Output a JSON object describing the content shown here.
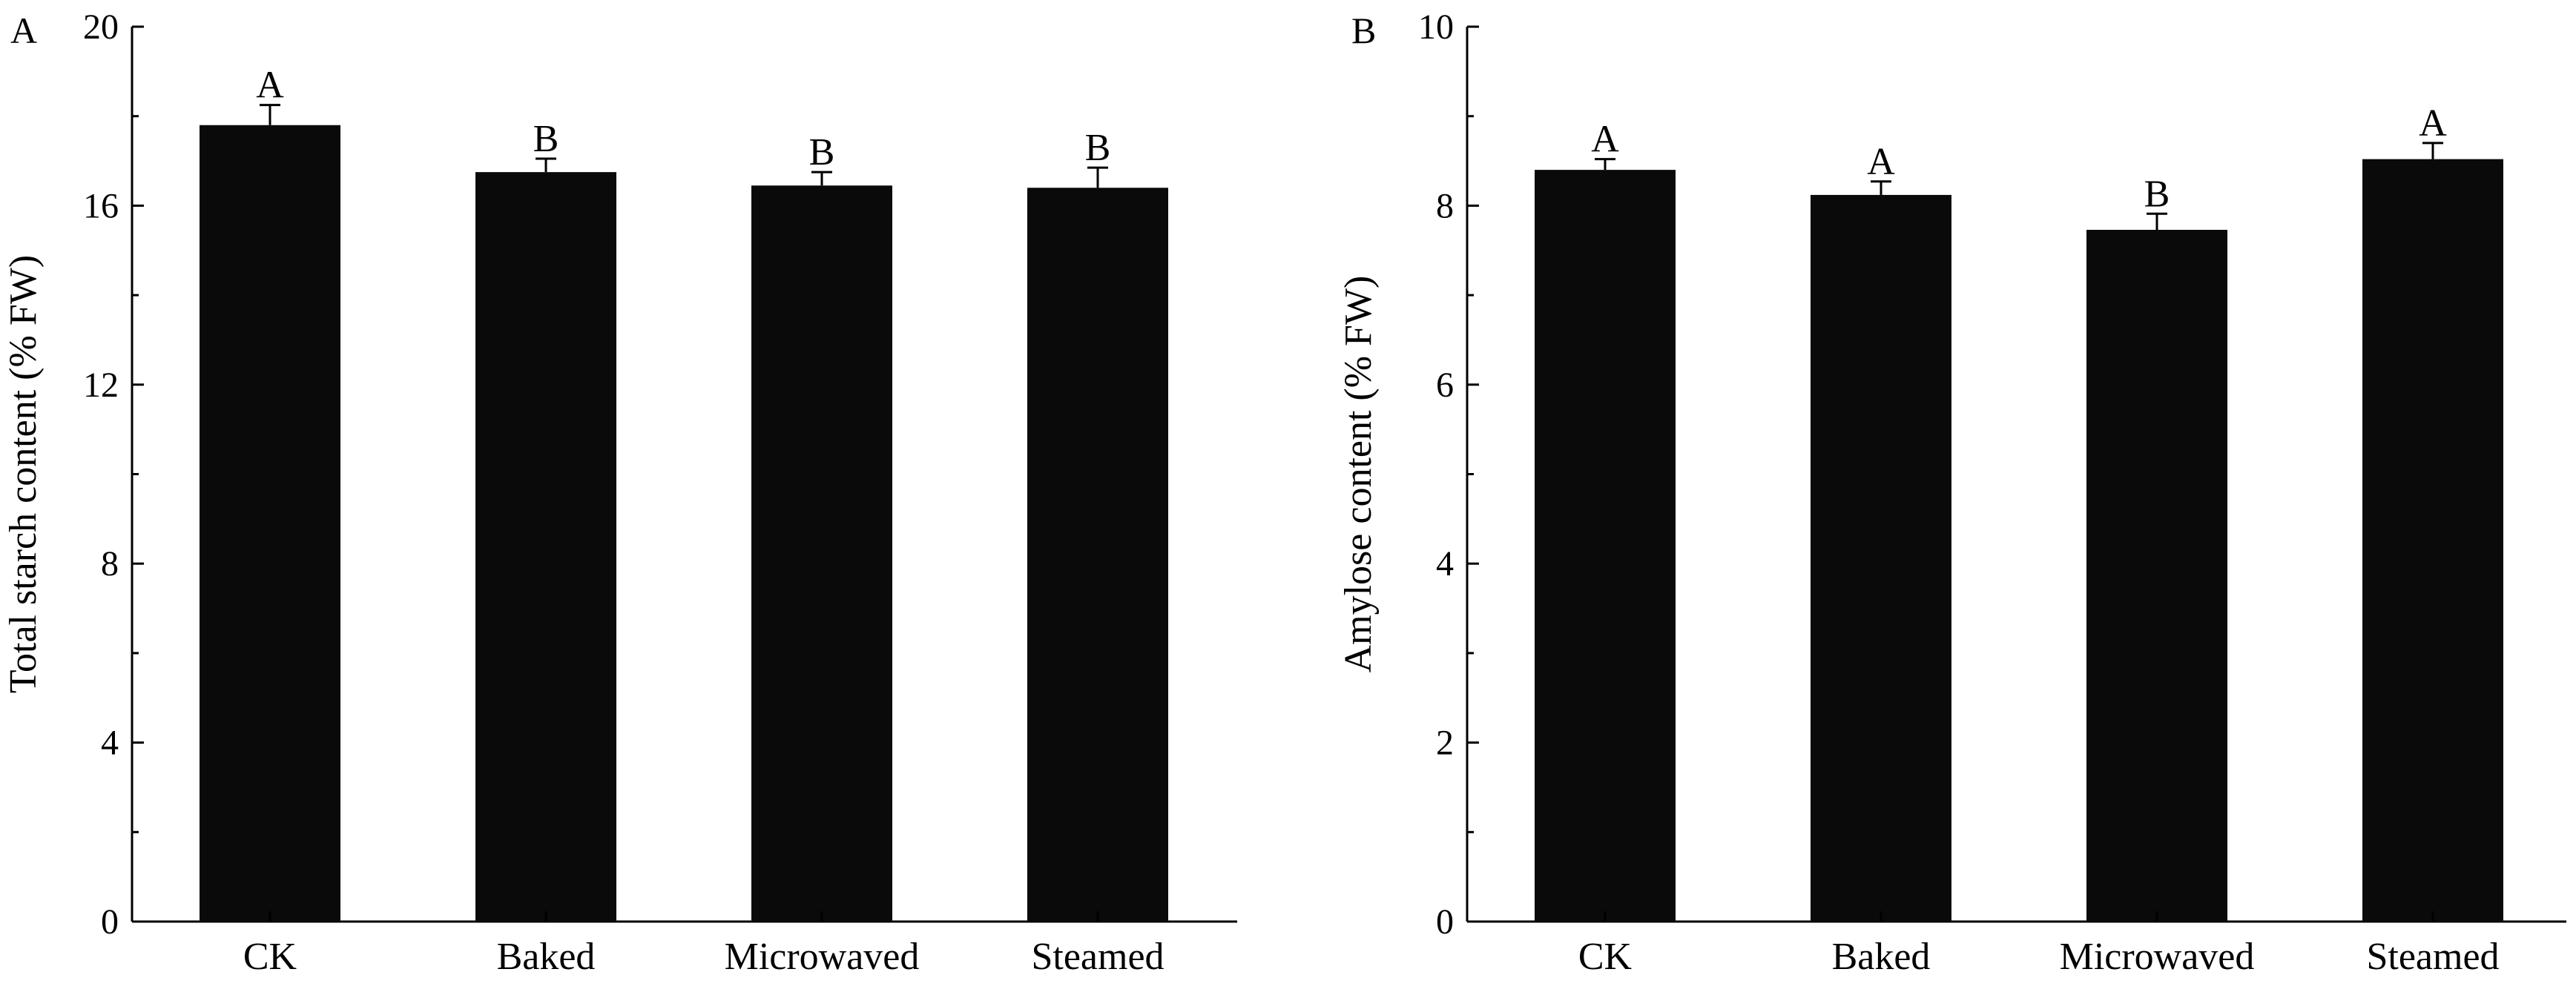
{
  "chart_data": [
    {
      "type": "bar",
      "panel": "A",
      "categories": [
        "CK",
        "Baked",
        "Microwaved",
        "Steamed"
      ],
      "values": [
        17.8,
        16.75,
        16.45,
        16.4
      ],
      "errors": [
        0.45,
        0.3,
        0.3,
        0.45
      ],
      "significance": [
        "A",
        "B",
        "B",
        "B"
      ],
      "title": "",
      "xlabel": "",
      "ylabel": "Total starch content (% FW)",
      "ylim": [
        0,
        20
      ],
      "yticks": [
        "0",
        "4",
        "8",
        "12",
        "16",
        "20"
      ],
      "grid": false,
      "bar_color": "#0a0a0a"
    },
    {
      "type": "bar",
      "panel": "B",
      "categories": [
        "CK",
        "Baked",
        "Microwaved",
        "Steamed"
      ],
      "values": [
        8.4,
        8.12,
        7.73,
        8.52
      ],
      "errors": [
        0.12,
        0.15,
        0.18,
        0.18
      ],
      "significance": [
        "A",
        "A",
        "B",
        "A"
      ],
      "title": "",
      "xlabel": "",
      "ylabel": "Amylose content (% FW)",
      "ylim": [
        0,
        10
      ],
      "yticks": [
        "0",
        "2",
        "4",
        "6",
        "8",
        "10"
      ],
      "grid": false,
      "bar_color": "#0a0a0a"
    }
  ]
}
